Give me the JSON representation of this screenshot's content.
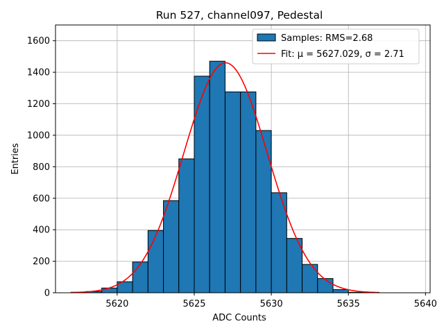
{
  "chart_data": {
    "type": "bar",
    "title": "Run 527, channel097, Pedestal",
    "xlabel": "ADC Counts",
    "ylabel": "Entries",
    "xlim": [
      5616.0,
      5640.3
    ],
    "ylim": [
      0,
      1700
    ],
    "xticks": [
      5620,
      5625,
      5630,
      5635,
      5640
    ],
    "yticks": [
      0,
      200,
      400,
      600,
      800,
      1000,
      1200,
      1400,
      1600
    ],
    "grid": true,
    "legend_position": "top-right",
    "bin_width": 1,
    "bins": {
      "left_edges": [
        5617,
        5618,
        5619,
        5620,
        5621,
        5622,
        5623,
        5624,
        5625,
        5626,
        5627,
        5628,
        5629,
        5630,
        5631,
        5632,
        5633,
        5634,
        5635,
        5636,
        5637,
        5638
      ],
      "counts": [
        3,
        8,
        30,
        70,
        195,
        395,
        585,
        850,
        1375,
        1470,
        1275,
        1275,
        1030,
        635,
        345,
        180,
        90,
        20,
        3,
        2,
        0,
        0
      ]
    },
    "fit": {
      "mu": 5627.029,
      "sigma": 2.71,
      "amplitude": 1460,
      "x_range": [
        5617,
        5637
      ]
    },
    "legend": [
      {
        "label": "Samples: RMS=2.68",
        "kind": "bars"
      },
      {
        "label": "Fit: μ = 5627.029, σ = 2.71",
        "kind": "line"
      }
    ],
    "colors": {
      "bars": "#1f77b4",
      "bar_edge": "#000000",
      "fit_line": "#ff0000",
      "grid": "#b0b0b0"
    }
  }
}
